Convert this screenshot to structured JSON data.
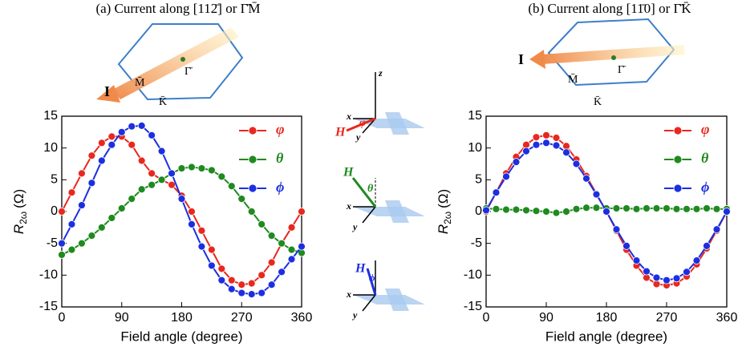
{
  "chart_data": [
    {
      "type": "line",
      "title": "(a) Current along [112̄] or Γ̄M̄",
      "xlabel": "Field angle (degree)",
      "ylabel_symbol": "R",
      "ylabel_subscript": "2ω",
      "ylabel_unit": "(Ω)",
      "xlim": [
        0,
        360
      ],
      "ylim": [
        -15,
        15
      ],
      "xticks": [
        0,
        90,
        180,
        270,
        360
      ],
      "yticks": [
        -15,
        -10,
        -5,
        0,
        5,
        10,
        15
      ],
      "grid": false,
      "legend": "upper right",
      "annotations": [
        "I",
        "M̄",
        "K̄",
        "Γ̄"
      ],
      "x": [
        0,
        15,
        30,
        45,
        60,
        75,
        90,
        105,
        120,
        135,
        150,
        165,
        180,
        195,
        210,
        225,
        240,
        255,
        270,
        285,
        300,
        315,
        330,
        345,
        360
      ],
      "series": [
        {
          "name": "φ",
          "color": "#e8281e",
          "values": [
            0,
            3,
            6,
            8.8,
            10.8,
            11.8,
            11.8,
            10.5,
            8,
            6,
            5,
            4.2,
            2.5,
            0,
            -3,
            -6,
            -9,
            -10.8,
            -11.5,
            -11.3,
            -10,
            -8,
            -5,
            -2.5,
            0
          ]
        },
        {
          "name": "θ",
          "color": "#1f8a1f",
          "values": [
            -6.8,
            -6,
            -5,
            -3.8,
            -2.5,
            -1,
            0.5,
            2,
            3.5,
            4.2,
            5,
            6,
            6.8,
            7,
            6.8,
            6.5,
            5.5,
            4,
            2,
            0,
            -2,
            -3.8,
            -5,
            -6,
            -6.5
          ]
        },
        {
          "name": "ϕ",
          "color": "#1c2fe0",
          "values": [
            -5,
            -2,
            1,
            4.5,
            8,
            10.5,
            12.5,
            13.4,
            13.5,
            12,
            9.5,
            6,
            2,
            -2,
            -5.5,
            -8.5,
            -10.8,
            -12.2,
            -12.8,
            -13,
            -12.8,
            -11.5,
            -9.5,
            -7.5,
            -5.5
          ]
        }
      ]
    },
    {
      "type": "line",
      "title": "(b) Current along [11̄0] or Γ̄K̄",
      "xlabel": "Field angle (degree)",
      "ylabel_symbol": "R",
      "ylabel_subscript": "2ω",
      "ylabel_unit": "(Ω)",
      "xlim": [
        0,
        360
      ],
      "ylim": [
        -15,
        15
      ],
      "xticks": [
        0,
        90,
        180,
        270,
        360
      ],
      "yticks": [
        -15,
        -10,
        -5,
        0,
        5,
        10,
        15
      ],
      "grid": false,
      "legend": "upper right",
      "annotations": [
        "I",
        "M̄",
        "K̄",
        "Γ̄"
      ],
      "x": [
        0,
        15,
        30,
        45,
        60,
        75,
        90,
        105,
        120,
        135,
        150,
        165,
        180,
        195,
        210,
        225,
        240,
        255,
        270,
        285,
        300,
        315,
        330,
        345,
        360
      ],
      "series": [
        {
          "name": "φ",
          "color": "#e8281e",
          "values": [
            0,
            3,
            6,
            8.6,
            10.5,
            11.7,
            12,
            11.6,
            10.3,
            8.2,
            5.6,
            2.8,
            0,
            -3,
            -6,
            -8.5,
            -10.4,
            -11.4,
            -11.6,
            -11.3,
            -10.2,
            -8.3,
            -5.8,
            -3,
            0
          ]
        },
        {
          "name": "θ",
          "color": "#1f8a1f",
          "values": [
            0.5,
            0.4,
            0.3,
            0.3,
            0.2,
            0.1,
            0,
            -0.2,
            0,
            0.4,
            0.6,
            0.6,
            0.5,
            0.5,
            0.5,
            0.4,
            0.5,
            0.5,
            0.5,
            0.4,
            0.4,
            0.4,
            0.5,
            0.4,
            0.4
          ]
        },
        {
          "name": "ϕ",
          "color": "#1c2fe0",
          "values": [
            0.2,
            3,
            5.5,
            7.8,
            9.5,
            10.5,
            10.8,
            10.4,
            9.3,
            7.5,
            5.2,
            2.7,
            0,
            -2.8,
            -5.4,
            -7.7,
            -9.4,
            -10.4,
            -10.8,
            -10.5,
            -9.5,
            -7.7,
            -5.4,
            -2.8,
            0
          ]
        }
      ]
    }
  ],
  "schematics": [
    {
      "axes": [
        "x",
        "y",
        "z"
      ],
      "field": "H",
      "angle": "φ"
    },
    {
      "axes": [
        "x",
        "y"
      ],
      "field": "H",
      "angle": "θ"
    },
    {
      "axes": [
        "x",
        "y"
      ],
      "field": "H",
      "angle": "ϕ"
    }
  ]
}
